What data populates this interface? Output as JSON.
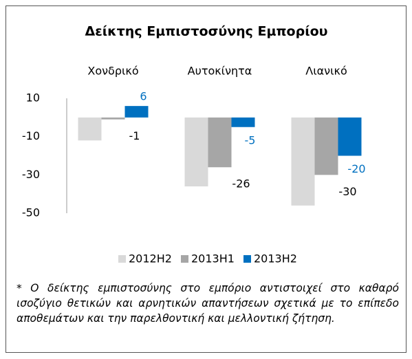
{
  "chart_data": {
    "type": "bar",
    "title": "Δείκτης Εμπιστοσύνης Εμπορίου",
    "categories": [
      "Χονδρικό",
      "Αυτοκίνητα",
      "Λιανικό"
    ],
    "series": [
      {
        "name": "2012H2",
        "color": "#d9d9d9",
        "values": [
          -12,
          -36,
          -46
        ]
      },
      {
        "name": "2013H1",
        "color": "#a6a6a6",
        "values": [
          -1,
          -26,
          -30
        ]
      },
      {
        "name": "2013H2",
        "color": "#0070c0",
        "values": [
          6,
          -5,
          -20
        ]
      }
    ],
    "labeled_series": [
      "2013H1",
      "2013H2"
    ],
    "ylim": [
      -50,
      10
    ],
    "yticks": [
      10,
      -10,
      -30,
      -50
    ],
    "grid": false,
    "legend": "bottom",
    "note": "* Ο δείκτης εμπιστοσύνης στο εμπόριο αντιστοιχεί στο καθαρό ισοζύγιο θετικών και αρνητικών απαντήσεων σχετικά με το επίπεδο αποθεμάτων και την παρελθοντική και μελλοντική ζήτηση."
  }
}
